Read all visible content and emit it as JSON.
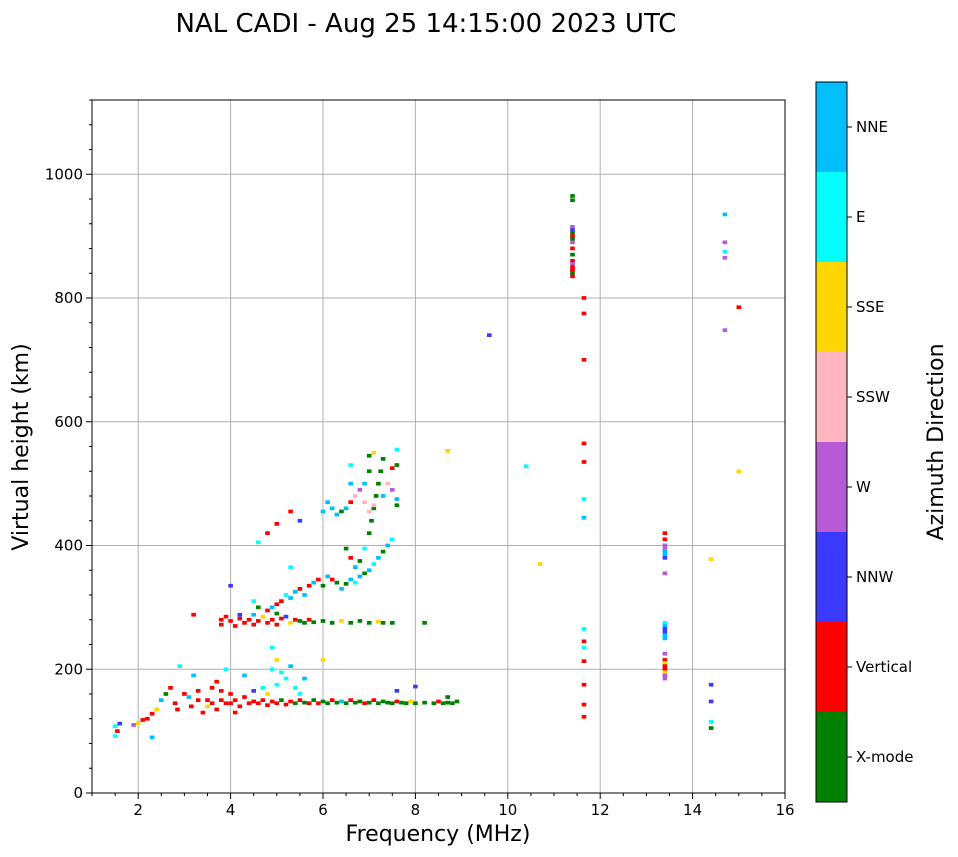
{
  "chart_data": {
    "type": "scatter",
    "title": "NAL CADI - Aug 25 14:15:00 2023 UTC",
    "xlabel": "Frequency (MHz)",
    "ylabel": "Virtual height (km)",
    "xlim": [
      1,
      16
    ],
    "ylim": [
      0,
      1120
    ],
    "xticks": [
      2,
      4,
      6,
      8,
      10,
      12,
      14,
      16
    ],
    "yticks": [
      0,
      200,
      400,
      600,
      800,
      1000
    ],
    "grid": true,
    "colorbar": {
      "label": "Azimuth Direction",
      "categories": [
        {
          "name": "X-mode",
          "color": "#008000"
        },
        {
          "name": "Vertical",
          "color": "#ff0000"
        },
        {
          "name": "NNW",
          "color": "#3b3bff"
        },
        {
          "name": "W",
          "color": "#b65ad6"
        },
        {
          "name": "SSW",
          "color": "#ffb6c1"
        },
        {
          "name": "SSE",
          "color": "#ffd700"
        },
        {
          "name": "E",
          "color": "#00ffff"
        },
        {
          "name": "NNE",
          "color": "#00bfff"
        }
      ]
    },
    "points": [
      [
        1.5,
        108,
        "E"
      ],
      [
        1.6,
        112,
        "NNW"
      ],
      [
        1.55,
        100,
        "Vertical"
      ],
      [
        1.5,
        92,
        "E"
      ],
      [
        1.9,
        110,
        "W"
      ],
      [
        2.0,
        113,
        "SSE"
      ],
      [
        2.1,
        118,
        "Vertical"
      ],
      [
        2.2,
        120,
        "Vertical"
      ],
      [
        2.3,
        90,
        "NNE"
      ],
      [
        2.3,
        128,
        "Vertical"
      ],
      [
        2.4,
        135,
        "SSE"
      ],
      [
        2.5,
        150,
        "NNE"
      ],
      [
        2.6,
        160,
        "X-mode"
      ],
      [
        2.7,
        170,
        "Vertical"
      ],
      [
        2.8,
        145,
        "Vertical"
      ],
      [
        2.85,
        135,
        "Vertical"
      ],
      [
        2.9,
        205,
        "E"
      ],
      [
        3.0,
        160,
        "Vertical"
      ],
      [
        3.1,
        155,
        "NNE"
      ],
      [
        3.15,
        140,
        "Vertical"
      ],
      [
        3.2,
        190,
        "NNE"
      ],
      [
        3.3,
        150,
        "Vertical"
      ],
      [
        3.3,
        165,
        "Vertical"
      ],
      [
        3.4,
        130,
        "Vertical"
      ],
      [
        3.5,
        150,
        "Vertical"
      ],
      [
        3.5,
        140,
        "SSE"
      ],
      [
        3.6,
        170,
        "Vertical"
      ],
      [
        3.6,
        145,
        "Vertical"
      ],
      [
        3.7,
        180,
        "Vertical"
      ],
      [
        3.7,
        135,
        "Vertical"
      ],
      [
        3.8,
        150,
        "Vertical"
      ],
      [
        3.8,
        165,
        "Vertical"
      ],
      [
        3.9,
        145,
        "Vertical"
      ],
      [
        3.9,
        200,
        "E"
      ],
      [
        4.0,
        160,
        "Vertical"
      ],
      [
        4.0,
        145,
        "Vertical"
      ],
      [
        4.1,
        150,
        "Vertical"
      ],
      [
        4.1,
        130,
        "Vertical"
      ],
      [
        4.2,
        140,
        "Vertical"
      ],
      [
        4.3,
        155,
        "Vertical"
      ],
      [
        4.3,
        190,
        "NNE"
      ],
      [
        4.4,
        145,
        "Vertical"
      ],
      [
        4.5,
        148,
        "Vertical"
      ],
      [
        4.5,
        165,
        "NNW"
      ],
      [
        4.6,
        145,
        "Vertical"
      ],
      [
        4.7,
        150,
        "Vertical"
      ],
      [
        4.7,
        170,
        "E"
      ],
      [
        4.8,
        142,
        "Vertical"
      ],
      [
        4.8,
        160,
        "SSE"
      ],
      [
        4.9,
        148,
        "Vertical"
      ],
      [
        4.9,
        200,
        "E"
      ],
      [
        4.9,
        235,
        "E"
      ],
      [
        5.0,
        145,
        "Vertical"
      ],
      [
        5.0,
        175,
        "E"
      ],
      [
        5.0,
        215,
        "SSE"
      ],
      [
        5.1,
        150,
        "X-mode"
      ],
      [
        5.1,
        195,
        "E"
      ],
      [
        5.2,
        143,
        "Vertical"
      ],
      [
        5.2,
        185,
        "E"
      ],
      [
        5.3,
        148,
        "Vertical"
      ],
      [
        5.3,
        205,
        "NNE"
      ],
      [
        5.4,
        145,
        "X-mode"
      ],
      [
        5.4,
        170,
        "E"
      ],
      [
        5.5,
        150,
        "Vertical"
      ],
      [
        5.5,
        160,
        "E"
      ],
      [
        5.6,
        146,
        "X-mode"
      ],
      [
        5.6,
        185,
        "NNE"
      ],
      [
        5.7,
        145,
        "Vertical"
      ],
      [
        5.8,
        150,
        "X-mode"
      ],
      [
        5.9,
        145,
        "Vertical"
      ],
      [
        6.0,
        215,
        "SSE"
      ],
      [
        6.0,
        148,
        "X-mode"
      ],
      [
        6.1,
        145,
        "X-mode"
      ],
      [
        6.2,
        150,
        "Vertical"
      ],
      [
        6.3,
        146,
        "X-mode"
      ],
      [
        6.4,
        148,
        "NNE"
      ],
      [
        6.5,
        145,
        "X-mode"
      ],
      [
        6.6,
        150,
        "Vertical"
      ],
      [
        6.7,
        146,
        "X-mode"
      ],
      [
        6.8,
        148,
        "X-mode"
      ],
      [
        6.9,
        145,
        "Vertical"
      ],
      [
        7.0,
        146,
        "X-mode"
      ],
      [
        7.1,
        150,
        "Vertical"
      ],
      [
        7.2,
        145,
        "X-mode"
      ],
      [
        7.3,
        148,
        "X-mode"
      ],
      [
        7.4,
        146,
        "X-mode"
      ],
      [
        7.5,
        145,
        "X-mode"
      ],
      [
        7.6,
        148,
        "Vertical"
      ],
      [
        7.7,
        146,
        "X-mode"
      ],
      [
        7.8,
        145,
        "X-mode"
      ],
      [
        7.9,
        148,
        "SSE"
      ],
      [
        8.0,
        145,
        "X-mode"
      ],
      [
        8.2,
        146,
        "X-mode"
      ],
      [
        8.4,
        145,
        "X-mode"
      ],
      [
        8.5,
        148,
        "Vertical"
      ],
      [
        8.6,
        145,
        "X-mode"
      ],
      [
        8.7,
        146,
        "X-mode"
      ],
      [
        8.8,
        145,
        "X-mode"
      ],
      [
        8.9,
        148,
        "X-mode"
      ],
      [
        8.7,
        155,
        "X-mode"
      ],
      [
        8.0,
        172,
        "NNW"
      ],
      [
        7.6,
        165,
        "NNW"
      ],
      [
        3.2,
        288,
        "Vertical"
      ],
      [
        3.8,
        280,
        "Vertical"
      ],
      [
        3.8,
        272,
        "Vertical"
      ],
      [
        3.9,
        285,
        "Vertical"
      ],
      [
        4.0,
        278,
        "Vertical"
      ],
      [
        4.1,
        270,
        "Vertical"
      ],
      [
        4.2,
        282,
        "Vertical"
      ],
      [
        4.2,
        288,
        "NNW"
      ],
      [
        4.3,
        275,
        "Vertical"
      ],
      [
        4.4,
        280,
        "Vertical"
      ],
      [
        4.5,
        272,
        "Vertical"
      ],
      [
        4.5,
        288,
        "NNE"
      ],
      [
        4.6,
        278,
        "Vertical"
      ],
      [
        4.7,
        285,
        "SSE"
      ],
      [
        4.8,
        275,
        "Vertical"
      ],
      [
        4.9,
        280,
        "Vertical"
      ],
      [
        5.0,
        272,
        "Vertical"
      ],
      [
        5.0,
        290,
        "X-mode"
      ],
      [
        5.1,
        282,
        "Vertical"
      ],
      [
        5.2,
        285,
        "NNW"
      ],
      [
        5.3,
        275,
        "SSE"
      ],
      [
        5.4,
        280,
        "Vertical"
      ],
      [
        5.5,
        278,
        "X-mode"
      ],
      [
        5.6,
        275,
        "X-mode"
      ],
      [
        5.7,
        280,
        "Vertical"
      ],
      [
        5.8,
        276,
        "X-mode"
      ],
      [
        6.0,
        278,
        "X-mode"
      ],
      [
        6.2,
        275,
        "X-mode"
      ],
      [
        6.4,
        278,
        "SSE"
      ],
      [
        6.6,
        275,
        "X-mode"
      ],
      [
        6.8,
        278,
        "X-mode"
      ],
      [
        7.0,
        275,
        "X-mode"
      ],
      [
        7.2,
        277,
        "SSE"
      ],
      [
        7.3,
        275,
        "X-mode"
      ],
      [
        7.5,
        275,
        "X-mode"
      ],
      [
        8.2,
        275,
        "X-mode"
      ],
      [
        4.0,
        335,
        "NNW"
      ],
      [
        4.5,
        310,
        "E"
      ],
      [
        4.6,
        300,
        "X-mode"
      ],
      [
        4.8,
        295,
        "Vertical"
      ],
      [
        4.9,
        300,
        "NNE"
      ],
      [
        5.0,
        305,
        "Vertical"
      ],
      [
        5.1,
        310,
        "Vertical"
      ],
      [
        5.2,
        320,
        "E"
      ],
      [
        5.3,
        315,
        "NNE"
      ],
      [
        5.4,
        325,
        "NNE"
      ],
      [
        5.5,
        330,
        "Vertical"
      ],
      [
        5.6,
        320,
        "NNE"
      ],
      [
        5.7,
        335,
        "Vertical"
      ],
      [
        5.8,
        340,
        "NNE"
      ],
      [
        5.9,
        345,
        "Vertical"
      ],
      [
        6.0,
        335,
        "X-mode"
      ],
      [
        6.1,
        350,
        "NNE"
      ],
      [
        6.2,
        345,
        "Vertical"
      ],
      [
        6.3,
        340,
        "X-mode"
      ],
      [
        6.4,
        330,
        "NNE"
      ],
      [
        6.5,
        338,
        "X-mode"
      ],
      [
        6.6,
        345,
        "NNE"
      ],
      [
        6.7,
        340,
        "E"
      ],
      [
        6.8,
        350,
        "NNE"
      ],
      [
        6.9,
        355,
        "X-mode"
      ],
      [
        7.0,
        360,
        "NNE"
      ],
      [
        7.1,
        370,
        "E"
      ],
      [
        7.2,
        380,
        "NNE"
      ],
      [
        7.3,
        390,
        "X-mode"
      ],
      [
        7.4,
        400,
        "NNE"
      ],
      [
        7.5,
        410,
        "E"
      ],
      [
        6.5,
        395,
        "X-mode"
      ],
      [
        6.6,
        380,
        "Vertical"
      ],
      [
        6.7,
        365,
        "NNE"
      ],
      [
        6.8,
        375,
        "X-mode"
      ],
      [
        6.9,
        395,
        "E"
      ],
      [
        7.0,
        420,
        "X-mode"
      ],
      [
        7.05,
        440,
        "X-mode"
      ],
      [
        7.1,
        460,
        "X-mode"
      ],
      [
        7.15,
        480,
        "X-mode"
      ],
      [
        7.2,
        500,
        "X-mode"
      ],
      [
        7.25,
        520,
        "X-mode"
      ],
      [
        7.3,
        540,
        "X-mode"
      ],
      [
        7.0,
        545,
        "X-mode"
      ],
      [
        7.1,
        550,
        "SSE"
      ],
      [
        7.0,
        520,
        "X-mode"
      ],
      [
        6.9,
        500,
        "NNE"
      ],
      [
        6.8,
        490,
        "W"
      ],
      [
        6.7,
        480,
        "SSW"
      ],
      [
        6.6,
        470,
        "Vertical"
      ],
      [
        6.5,
        460,
        "NNE"
      ],
      [
        6.4,
        455,
        "X-mode"
      ],
      [
        6.3,
        450,
        "NNE"
      ],
      [
        6.2,
        460,
        "NNE"
      ],
      [
        6.1,
        470,
        "NNE"
      ],
      [
        6.0,
        455,
        "NNE"
      ],
      [
        6.6,
        500,
        "NNE"
      ],
      [
        6.6,
        530,
        "E"
      ],
      [
        6.9,
        470,
        "SSW"
      ],
      [
        7.0,
        455,
        "SSW"
      ],
      [
        7.1,
        465,
        "SSW"
      ],
      [
        7.3,
        480,
        "NNE"
      ],
      [
        7.4,
        500,
        "SSW"
      ],
      [
        7.5,
        490,
        "W"
      ],
      [
        7.6,
        475,
        "NNE"
      ],
      [
        7.6,
        465,
        "X-mode"
      ],
      [
        7.5,
        525,
        "Vertical"
      ],
      [
        7.6,
        555,
        "E"
      ],
      [
        7.6,
        530,
        "X-mode"
      ],
      [
        5.3,
        455,
        "Vertical"
      ],
      [
        5.5,
        440,
        "NNW"
      ],
      [
        4.8,
        420,
        "Vertical"
      ],
      [
        4.6,
        405,
        "E"
      ],
      [
        5.0,
        435,
        "Vertical"
      ],
      [
        5.3,
        365,
        "E"
      ],
      [
        8.7,
        553,
        "SSE"
      ],
      [
        10.4,
        528,
        "E"
      ],
      [
        10.7,
        370,
        "SSE"
      ],
      [
        9.6,
        740,
        "NNW"
      ],
      [
        11.4,
        965,
        "X-mode"
      ],
      [
        11.4,
        958,
        "X-mode"
      ],
      [
        11.4,
        905,
        "X-mode"
      ],
      [
        11.4,
        900,
        "Vertical"
      ],
      [
        11.4,
        895,
        "X-mode"
      ],
      [
        11.4,
        890,
        "W"
      ],
      [
        11.4,
        880,
        "Vertical"
      ],
      [
        11.4,
        870,
        "X-mode"
      ],
      [
        11.4,
        860,
        "Vertical"
      ],
      [
        11.4,
        855,
        "W"
      ],
      [
        11.4,
        850,
        "Vertical"
      ],
      [
        11.4,
        845,
        "Vertical"
      ],
      [
        11.4,
        840,
        "X-mode"
      ],
      [
        11.4,
        835,
        "Vertical"
      ],
      [
        11.4,
        915,
        "W"
      ],
      [
        11.4,
        910,
        "NNW"
      ],
      [
        11.65,
        800,
        "Vertical"
      ],
      [
        11.65,
        775,
        "Vertical"
      ],
      [
        11.65,
        700,
        "Vertical"
      ],
      [
        11.65,
        565,
        "Vertical"
      ],
      [
        11.65,
        535,
        "Vertical"
      ],
      [
        11.65,
        475,
        "E"
      ],
      [
        11.65,
        445,
        "NNE"
      ],
      [
        11.65,
        265,
        "E"
      ],
      [
        11.65,
        245,
        "Vertical"
      ],
      [
        11.65,
        235,
        "E"
      ],
      [
        11.65,
        213,
        "Vertical"
      ],
      [
        11.65,
        175,
        "Vertical"
      ],
      [
        11.65,
        143,
        "Vertical"
      ],
      [
        11.65,
        123,
        "Vertical"
      ],
      [
        13.4,
        420,
        "Vertical"
      ],
      [
        13.4,
        410,
        "Vertical"
      ],
      [
        13.4,
        400,
        "W"
      ],
      [
        13.4,
        395,
        "W"
      ],
      [
        13.4,
        390,
        "NNE"
      ],
      [
        13.4,
        385,
        "NNE"
      ],
      [
        13.4,
        380,
        "NNW"
      ],
      [
        13.4,
        355,
        "W"
      ],
      [
        13.4,
        275,
        "E"
      ],
      [
        13.4,
        270,
        "NNE"
      ],
      [
        13.4,
        265,
        "NNW"
      ],
      [
        13.4,
        260,
        "NNW"
      ],
      [
        13.4,
        255,
        "NNE"
      ],
      [
        13.4,
        250,
        "NNE"
      ],
      [
        13.4,
        225,
        "W"
      ],
      [
        13.4,
        215,
        "Vertical"
      ],
      [
        13.4,
        210,
        "SSE"
      ],
      [
        13.4,
        205,
        "Vertical"
      ],
      [
        13.4,
        200,
        "Vertical"
      ],
      [
        13.4,
        195,
        "SSE"
      ],
      [
        13.4,
        190,
        "W"
      ],
      [
        13.4,
        185,
        "W"
      ],
      [
        14.4,
        378,
        "SSE"
      ],
      [
        14.4,
        175,
        "NNW"
      ],
      [
        14.4,
        148,
        "NNW"
      ],
      [
        14.4,
        115,
        "E"
      ],
      [
        14.4,
        105,
        "X-mode"
      ],
      [
        14.7,
        935,
        "NNE"
      ],
      [
        14.7,
        890,
        "W"
      ],
      [
        14.7,
        875,
        "E"
      ],
      [
        14.7,
        865,
        "W"
      ],
      [
        14.7,
        748,
        "W"
      ],
      [
        15.0,
        785,
        "Vertical"
      ],
      [
        15.0,
        520,
        "SSE"
      ]
    ]
  }
}
